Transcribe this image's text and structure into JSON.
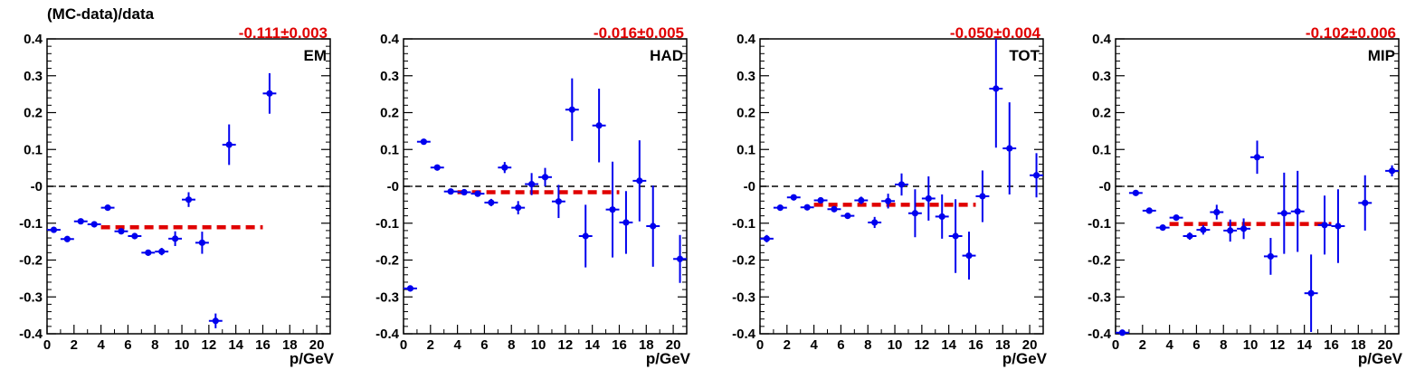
{
  "figure": {
    "ylabel": "(MC-data)/data"
  },
  "chart_data": [
    {
      "type": "scatter",
      "label": "EM",
      "fit_text": "-0.111±0.003",
      "fit": {
        "value": -0.111,
        "error": 0.003,
        "xrange": [
          4,
          16
        ]
      },
      "xlabel": "p/GeV",
      "xlim": [
        0,
        21
      ],
      "ylim": [
        -0.4,
        0.4
      ],
      "xticks": [
        "0",
        "2",
        "4",
        "6",
        "8",
        "10",
        "12",
        "14",
        "16",
        "18",
        "20"
      ],
      "yticks": [
        "-0.4",
        "-0.3",
        "-0.2",
        "-0.1",
        "-0",
        "0.1",
        "0.2",
        "0.3",
        "0.4"
      ],
      "reference_line": 0,
      "points": [
        {
          "x": 0.5,
          "y": -0.118,
          "ey": 0.004
        },
        {
          "x": 1.5,
          "y": -0.143,
          "ey": 0.004
        },
        {
          "x": 2.5,
          "y": -0.095,
          "ey": 0.004
        },
        {
          "x": 3.5,
          "y": -0.103,
          "ey": 0.005
        },
        {
          "x": 4.5,
          "y": -0.058,
          "ey": 0.006
        },
        {
          "x": 5.5,
          "y": -0.122,
          "ey": 0.006
        },
        {
          "x": 6.5,
          "y": -0.135,
          "ey": 0.007
        },
        {
          "x": 7.5,
          "y": -0.18,
          "ey": 0.008
        },
        {
          "x": 8.5,
          "y": -0.177,
          "ey": 0.01
        },
        {
          "x": 9.5,
          "y": -0.142,
          "ey": 0.02
        },
        {
          "x": 10.5,
          "y": -0.036,
          "ey": 0.02
        },
        {
          "x": 11.5,
          "y": -0.153,
          "ey": 0.03
        },
        {
          "x": 12.5,
          "y": -0.365,
          "ey": 0.02
        },
        {
          "x": 13.5,
          "y": 0.113,
          "ey": 0.055
        },
        {
          "x": 16.5,
          "y": 0.252,
          "ey": 0.055
        }
      ]
    },
    {
      "type": "scatter",
      "label": "HAD",
      "fit_text": "-0.016±0.005",
      "fit": {
        "value": -0.016,
        "error": 0.005,
        "xrange": [
          4,
          16
        ]
      },
      "xlabel": "p/GeV",
      "xlim": [
        0,
        21
      ],
      "ylim": [
        -0.4,
        0.4
      ],
      "xticks": [
        "0",
        "2",
        "4",
        "6",
        "8",
        "10",
        "12",
        "14",
        "16",
        "18",
        "20"
      ],
      "yticks": [
        "-0.4",
        "-0.3",
        "-0.2",
        "-0.1",
        "-0",
        "0.1",
        "0.2",
        "0.3",
        "0.4"
      ],
      "reference_line": 0,
      "points": [
        {
          "x": 0.5,
          "y": -0.277,
          "ey": 0.008
        },
        {
          "x": 1.5,
          "y": 0.121,
          "ey": 0.004
        },
        {
          "x": 2.5,
          "y": 0.051,
          "ey": 0.004
        },
        {
          "x": 3.5,
          "y": -0.014,
          "ey": 0.005
        },
        {
          "x": 4.5,
          "y": -0.016,
          "ey": 0.006
        },
        {
          "x": 5.5,
          "y": -0.02,
          "ey": 0.007
        },
        {
          "x": 6.5,
          "y": -0.044,
          "ey": 0.01
        },
        {
          "x": 7.5,
          "y": 0.051,
          "ey": 0.015
        },
        {
          "x": 8.5,
          "y": -0.058,
          "ey": 0.018
        },
        {
          "x": 9.5,
          "y": 0.006,
          "ey": 0.03
        },
        {
          "x": 10.5,
          "y": 0.025,
          "ey": 0.025
        },
        {
          "x": 11.5,
          "y": -0.041,
          "ey": 0.045
        },
        {
          "x": 12.5,
          "y": 0.208,
          "ey": 0.085
        },
        {
          "x": 13.5,
          "y": -0.135,
          "ey": 0.085
        },
        {
          "x": 14.5,
          "y": 0.165,
          "ey": 0.1
        },
        {
          "x": 15.5,
          "y": -0.063,
          "ey": 0.13
        },
        {
          "x": 16.5,
          "y": -0.098,
          "ey": 0.085
        },
        {
          "x": 17.5,
          "y": 0.015,
          "ey": 0.11
        },
        {
          "x": 18.5,
          "y": -0.108,
          "ey": 0.11
        },
        {
          "x": 20.5,
          "y": -0.197,
          "ey": 0.065
        }
      ]
    },
    {
      "type": "scatter",
      "label": "TOT",
      "fit_text": "-0.050±0.004",
      "fit": {
        "value": -0.05,
        "error": 0.004,
        "xrange": [
          4,
          16
        ]
      },
      "xlabel": "p/GeV",
      "xlim": [
        0,
        21
      ],
      "ylim": [
        -0.4,
        0.4
      ],
      "xticks": [
        "0",
        "2",
        "4",
        "6",
        "8",
        "10",
        "12",
        "14",
        "16",
        "18",
        "20"
      ],
      "yticks": [
        "-0.4",
        "-0.3",
        "-0.2",
        "-0.1",
        "-0",
        "0.1",
        "0.2",
        "0.3",
        "0.4"
      ],
      "reference_line": 0,
      "points": [
        {
          "x": 0.5,
          "y": -0.142,
          "ey": 0.01
        },
        {
          "x": 1.5,
          "y": -0.058,
          "ey": 0.004
        },
        {
          "x": 2.5,
          "y": -0.03,
          "ey": 0.004
        },
        {
          "x": 3.5,
          "y": -0.057,
          "ey": 0.004
        },
        {
          "x": 4.5,
          "y": -0.038,
          "ey": 0.005
        },
        {
          "x": 5.5,
          "y": -0.062,
          "ey": 0.006
        },
        {
          "x": 6.5,
          "y": -0.08,
          "ey": 0.008
        },
        {
          "x": 7.5,
          "y": -0.038,
          "ey": 0.01
        },
        {
          "x": 8.5,
          "y": -0.098,
          "ey": 0.015
        },
        {
          "x": 9.5,
          "y": -0.04,
          "ey": 0.02
        },
        {
          "x": 10.5,
          "y": 0.005,
          "ey": 0.03
        },
        {
          "x": 11.5,
          "y": -0.073,
          "ey": 0.065
        },
        {
          "x": 12.5,
          "y": -0.033,
          "ey": 0.06
        },
        {
          "x": 13.5,
          "y": -0.082,
          "ey": 0.06
        },
        {
          "x": 14.5,
          "y": -0.135,
          "ey": 0.1
        },
        {
          "x": 15.5,
          "y": -0.188,
          "ey": 0.065
        },
        {
          "x": 16.5,
          "y": -0.027,
          "ey": 0.07
        },
        {
          "x": 17.5,
          "y": 0.265,
          "ey": 0.16
        },
        {
          "x": 18.5,
          "y": 0.103,
          "ey": 0.125
        },
        {
          "x": 20.5,
          "y": 0.03,
          "ey": 0.06
        }
      ]
    },
    {
      "type": "scatter",
      "label": "MIP",
      "fit_text": "-0.102±0.006",
      "fit": {
        "value": -0.102,
        "error": 0.006,
        "xrange": [
          4,
          16
        ]
      },
      "xlabel": "p/GeV",
      "xlim": [
        0,
        21
      ],
      "ylim": [
        -0.4,
        0.4
      ],
      "xticks": [
        "0",
        "2",
        "4",
        "6",
        "8",
        "10",
        "12",
        "14",
        "16",
        "18",
        "20"
      ],
      "yticks": [
        "-0.4",
        "-0.3",
        "-0.2",
        "-0.1",
        "-0",
        "0.1",
        "0.2",
        "0.3",
        "0.4"
      ],
      "reference_line": 0,
      "points": [
        {
          "x": 0.5,
          "y": -0.397,
          "ey": 0.005
        },
        {
          "x": 1.5,
          "y": -0.018,
          "ey": 0.004
        },
        {
          "x": 2.5,
          "y": -0.066,
          "ey": 0.005
        },
        {
          "x": 3.5,
          "y": -0.112,
          "ey": 0.006
        },
        {
          "x": 4.5,
          "y": -0.085,
          "ey": 0.007
        },
        {
          "x": 5.5,
          "y": -0.135,
          "ey": 0.01
        },
        {
          "x": 6.5,
          "y": -0.118,
          "ey": 0.013
        },
        {
          "x": 7.5,
          "y": -0.07,
          "ey": 0.02
        },
        {
          "x": 8.5,
          "y": -0.12,
          "ey": 0.03
        },
        {
          "x": 9.5,
          "y": -0.115,
          "ey": 0.028
        },
        {
          "x": 10.5,
          "y": 0.079,
          "ey": 0.045
        },
        {
          "x": 11.5,
          "y": -0.19,
          "ey": 0.05
        },
        {
          "x": 12.5,
          "y": -0.073,
          "ey": 0.11
        },
        {
          "x": 13.5,
          "y": -0.068,
          "ey": 0.11
        },
        {
          "x": 14.5,
          "y": -0.29,
          "ey": 0.105
        },
        {
          "x": 15.5,
          "y": -0.105,
          "ey": 0.08
        },
        {
          "x": 16.5,
          "y": -0.108,
          "ey": 0.1
        },
        {
          "x": 18.5,
          "y": -0.045,
          "ey": 0.075
        },
        {
          "x": 20.5,
          "y": 0.042,
          "ey": 0.015
        }
      ]
    }
  ],
  "colors": {
    "points": "#0000ee",
    "fit": "#e00000",
    "reference": "#000000",
    "axes": "#000000"
  }
}
